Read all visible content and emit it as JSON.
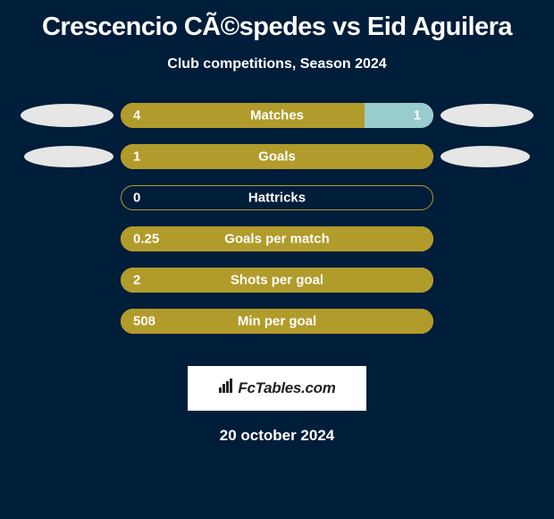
{
  "title": "Crescencio CÃ©spedes vs Eid Aguilera",
  "subtitle": "Club competitions, Season 2024",
  "date": "20 october 2024",
  "logo_text": "FcTables.com",
  "colors": {
    "background": "#001d3a",
    "bar_border": "#b19b2b",
    "left_fill": "#b19b2b",
    "right_fill": "#99cccc",
    "ellipse": "#e6e6e6",
    "text": "#ffffff",
    "logo_bg": "#ffffff",
    "logo_text": "#222222"
  },
  "rows": [
    {
      "label": "Matches",
      "left_value": "4",
      "right_value": "1",
      "left_pct": 78,
      "right_pct": 22,
      "show_ellipses": true,
      "ellipse_big": true
    },
    {
      "label": "Goals",
      "left_value": "1",
      "right_value": "",
      "left_pct": 100,
      "right_pct": 0,
      "show_ellipses": true,
      "ellipse_big": false
    },
    {
      "label": "Hattricks",
      "left_value": "0",
      "right_value": "",
      "left_pct": 0,
      "right_pct": 0,
      "show_ellipses": false
    },
    {
      "label": "Goals per match",
      "left_value": "0.25",
      "right_value": "",
      "left_pct": 100,
      "right_pct": 0,
      "show_ellipses": false
    },
    {
      "label": "Shots per goal",
      "left_value": "2",
      "right_value": "",
      "left_pct": 100,
      "right_pct": 0,
      "show_ellipses": false
    },
    {
      "label": "Min per goal",
      "left_value": "508",
      "right_value": "",
      "left_pct": 100,
      "right_pct": 0,
      "show_ellipses": false
    }
  ]
}
